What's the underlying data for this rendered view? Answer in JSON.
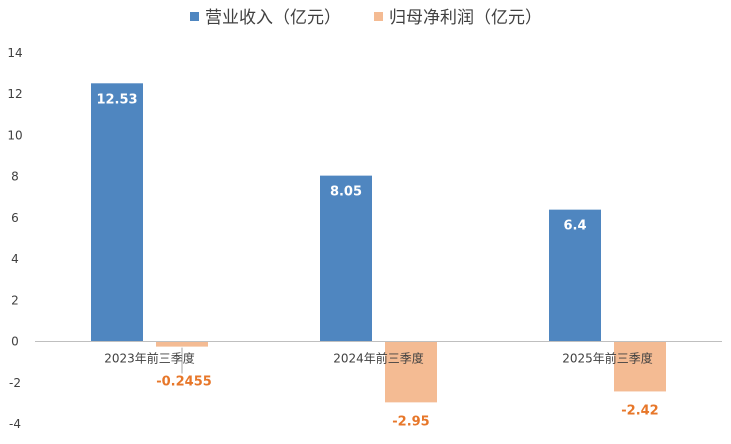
{
  "chart_data": {
    "type": "bar",
    "categories": [
      "2023年前三季度",
      "2024年前三季度",
      "2025年前三季度"
    ],
    "series": [
      {
        "name": "营业收入（亿元）",
        "values": [
          12.53,
          8.05,
          6.4
        ],
        "labels": [
          "12.53",
          "8.05",
          "6.4"
        ],
        "color": "#4F86C0"
      },
      {
        "name": "归母净利润（亿元）",
        "values": [
          -0.2455,
          -2.95,
          -2.42
        ],
        "labels": [
          "-0.2455",
          "-2.95",
          "-2.42"
        ],
        "color": "#F4BB93"
      }
    ],
    "ylim": [
      -4,
      14
    ],
    "yticks": [
      "-4",
      "-2",
      "0",
      "2",
      "4",
      "6",
      "8",
      "10",
      "12",
      "14"
    ],
    "title": "",
    "xlabel": "",
    "ylabel": "",
    "grid": false,
    "legend_position": "top",
    "label_colors": {
      "revenue": "#FFFFFF",
      "net_profit": "#E7772A"
    },
    "axis_color": "#BFBFBF"
  }
}
